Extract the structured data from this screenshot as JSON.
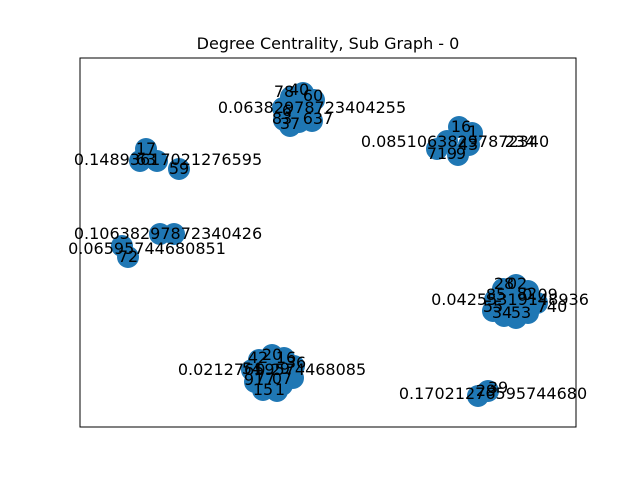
{
  "title": "Degree Centrality, Sub Graph - 0",
  "colors": {
    "node": "#1f77b4",
    "frame": "#000000",
    "background": "#ffffff"
  },
  "clusters": [
    {
      "id": "cluster-top-center",
      "labels": [
        "78",
        "40",
        "60",
        "0.06382978723404255",
        "6",
        "83",
        "37",
        "637"
      ]
    },
    {
      "id": "cluster-top-right",
      "labels": [
        "16",
        "1",
        "0.08510638297872340",
        "234",
        "71",
        "9",
        "43",
        "9"
      ]
    },
    {
      "id": "cluster-left-upper",
      "labels": [
        "17",
        "63",
        "59",
        "0.14893617021276595"
      ]
    },
    {
      "id": "cluster-left-lower",
      "labels": [
        "0.10638297872340426",
        "72",
        "0.06595744680851"
      ]
    },
    {
      "id": "cluster-right-mid",
      "labels": [
        "28",
        "02",
        "82",
        "0.04255319148936",
        "85",
        "0.09",
        "55",
        "740",
        "34",
        "53"
      ]
    },
    {
      "id": "cluster-bottom-center",
      "labels": [
        "42",
        "20",
        "16",
        "36",
        "0.02127659574468085",
        "54",
        "0.2",
        "9",
        "91",
        "77",
        "07",
        "15",
        "1"
      ]
    },
    {
      "id": "cluster-bottom-right",
      "labels": [
        "29",
        "0.17021276595744680",
        "39"
      ]
    }
  ]
}
